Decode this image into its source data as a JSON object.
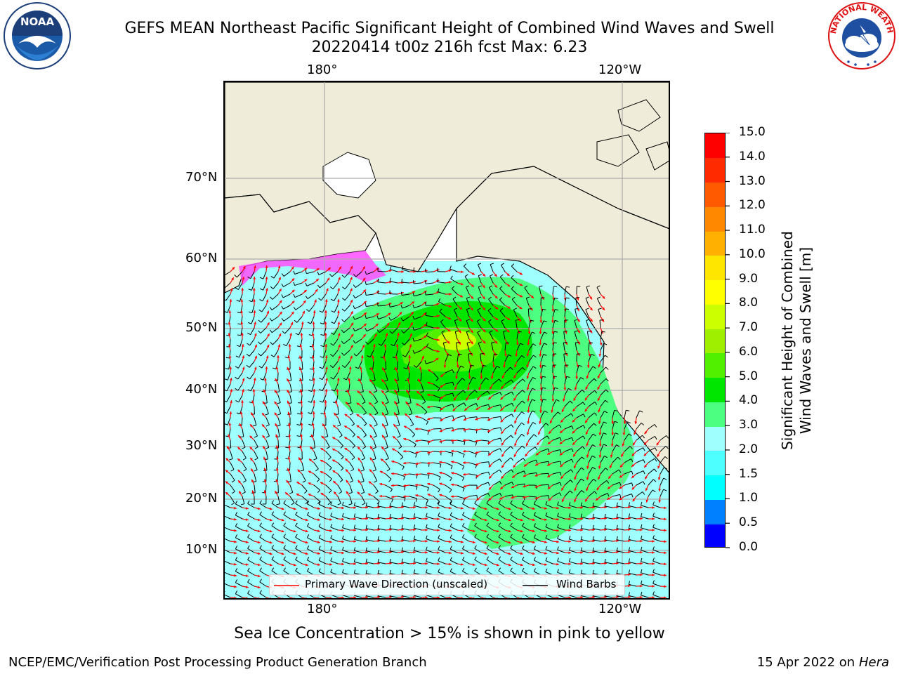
{
  "header": {
    "title_line1": "GEFS MEAN Northeast Pacific Significant Height of Combined Wind Waves and Swell",
    "title_line2": "20220414 t00z 216h fcst   Max: 6.23"
  },
  "logos": {
    "left": {
      "icon": "noaa-logo",
      "text": "NOAA"
    },
    "right": {
      "icon": "nws-logo",
      "text": "NATIONAL WEATHER SERVICE"
    }
  },
  "map": {
    "lon_labels_top": [
      "180°",
      "120°W"
    ],
    "lon_labels_bottom": [
      "180°",
      "120°W"
    ],
    "lat_labels": [
      "70°N",
      "60°N",
      "50°N",
      "40°N",
      "30°N",
      "20°N",
      "10°N"
    ],
    "colors": {
      "land": "#efedd9",
      "low_wave": "#9fffff",
      "mid_wave": "#4dff80",
      "high_wave": "#00e600",
      "peak_wave": "#ccff00",
      "ice": "#ff4dff",
      "gridline": "#aaaaaa"
    }
  },
  "legend": {
    "wave_label": "Primary Wave Direction (unscaled)",
    "wind_label": "Wind Barbs",
    "wave_color": "#ff0000",
    "wind_color": "#000000"
  },
  "colorbar": {
    "label_line1": "Significant Height of Combined",
    "label_line2": "Wind Waves and Swell [m]",
    "ticks": [
      "0.0",
      "0.5",
      "1.0",
      "1.5",
      "2.0",
      "3.0",
      "4.0",
      "5.0",
      "6.0",
      "7.0",
      "8.0",
      "9.0",
      "10.0",
      "11.0",
      "12.0",
      "13.0",
      "14.0",
      "15.0"
    ],
    "colors": [
      "#0000ff",
      "#0080ff",
      "#00ffff",
      "#4dffff",
      "#9fffff",
      "#4dff80",
      "#00e600",
      "#50f000",
      "#9ef000",
      "#ccff00",
      "#ffff00",
      "#ffe600",
      "#ffb000",
      "#ff8800",
      "#ff5a00",
      "#ff2a00",
      "#ff0000"
    ]
  },
  "notes": {
    "sea_ice": "Sea Ice Concentration > 15% is shown in pink to yellow"
  },
  "footer": {
    "left": "NCEP/EMC/Verification Post Processing Product Generation Branch",
    "date": "15 Apr 2022 on ",
    "host": "Hera"
  }
}
